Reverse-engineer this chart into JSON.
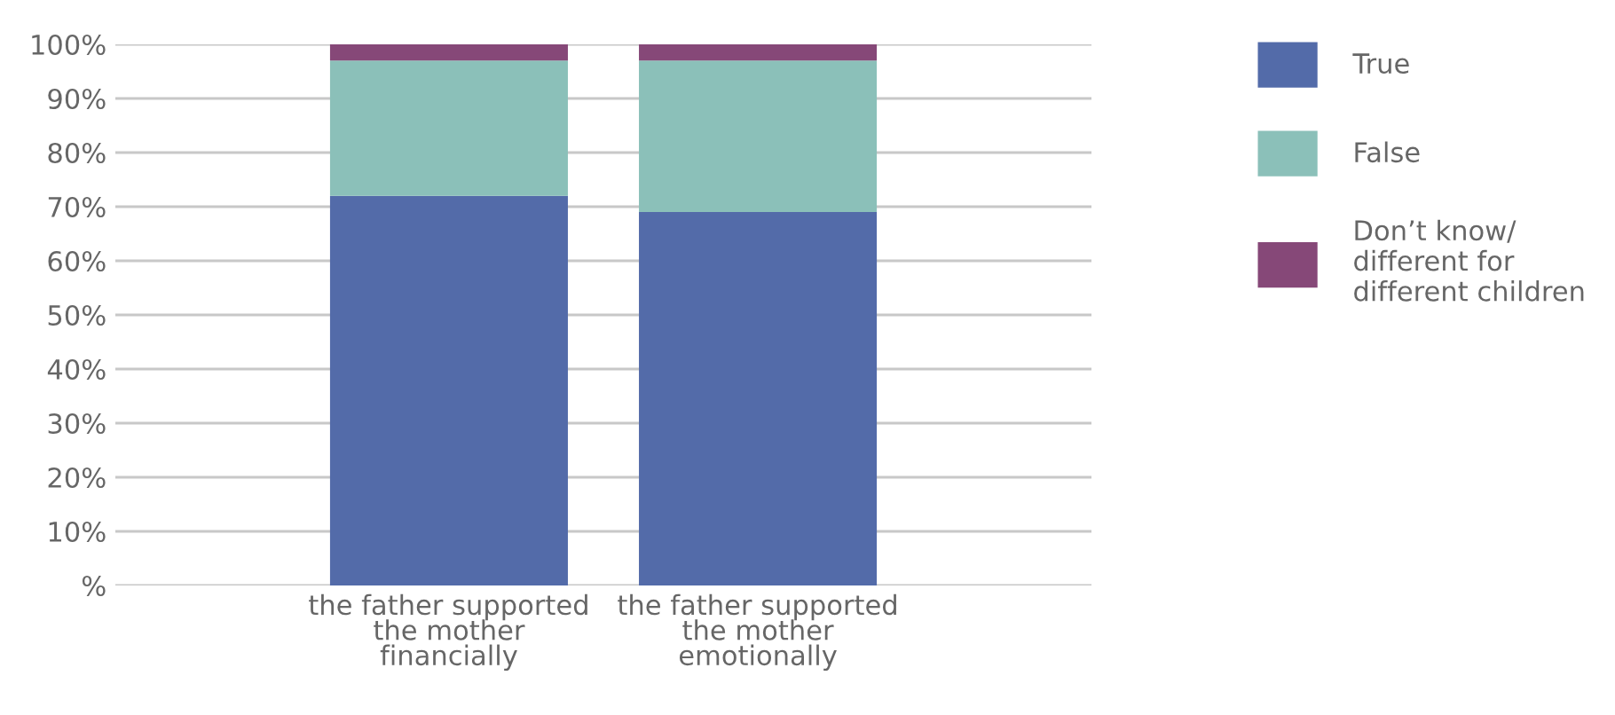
{
  "chart_data": {
    "type": "bar",
    "stacked": true,
    "categories": [
      "the father supported\nthe mother\nfinancially",
      "the father supported\nthe mother\nemotionally"
    ],
    "series": [
      {
        "name": "True",
        "color": "#536ba9",
        "values": [
          72,
          69
        ]
      },
      {
        "name": "False",
        "color": "#8bc0b9",
        "values": [
          25,
          28
        ]
      },
      {
        "name": "Don’t know/\ndifferent for\ndifferent children",
        "color": "#864878",
        "values": [
          3,
          3
        ]
      }
    ],
    "ylim": [
      0,
      100
    ],
    "yticks": [
      {
        "value": 0,
        "label": "%"
      },
      {
        "value": 10,
        "label": "10%"
      },
      {
        "value": 20,
        "label": "20%"
      },
      {
        "value": 30,
        "label": "30%"
      },
      {
        "value": 40,
        "label": "40%"
      },
      {
        "value": 50,
        "label": "50%"
      },
      {
        "value": 60,
        "label": "60%"
      },
      {
        "value": 70,
        "label": "70%"
      },
      {
        "value": 80,
        "label": "80%"
      },
      {
        "value": 90,
        "label": "90%"
      },
      {
        "value": 100,
        "label": "100%"
      }
    ],
    "grid": "y",
    "legend": "right"
  }
}
